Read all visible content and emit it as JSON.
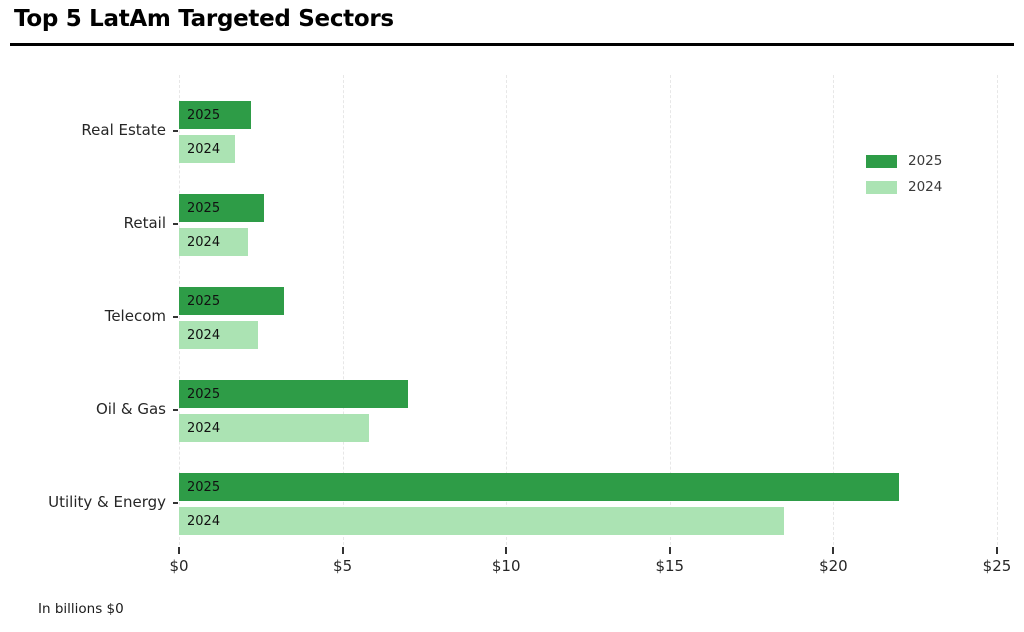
{
  "header": {
    "title": "Top 5 LatAm Targeted Sectors"
  },
  "footer": {
    "note": "In billions $0"
  },
  "chart_data": {
    "type": "bar",
    "orientation": "horizontal",
    "title": "Top 5 LatAm Targeted Sectors",
    "xlabel": "",
    "ylabel": "",
    "unit": "billions USD",
    "xlim": [
      0,
      25
    ],
    "xticks": [
      {
        "value": 0,
        "label": "$0"
      },
      {
        "value": 5,
        "label": "$5"
      },
      {
        "value": 10,
        "label": "$10"
      },
      {
        "value": 15,
        "label": "$15"
      },
      {
        "value": 20,
        "label": "$20"
      },
      {
        "value": 25,
        "label": "$25"
      }
    ],
    "grid": "vertical-dashed",
    "legend_position": "right",
    "bar_inner_labels": true,
    "categories": [
      "Real Estate",
      "Retail",
      "Telecom",
      "Oil & Gas",
      "Utility & Energy"
    ],
    "series": [
      {
        "name": "2025",
        "color": "#2e9c47",
        "values": [
          2.2,
          2.6,
          3.2,
          7.0,
          22.0
        ]
      },
      {
        "name": "2024",
        "color": "#abe3b3",
        "values": [
          1.7,
          2.1,
          2.4,
          5.8,
          18.5
        ]
      }
    ]
  }
}
